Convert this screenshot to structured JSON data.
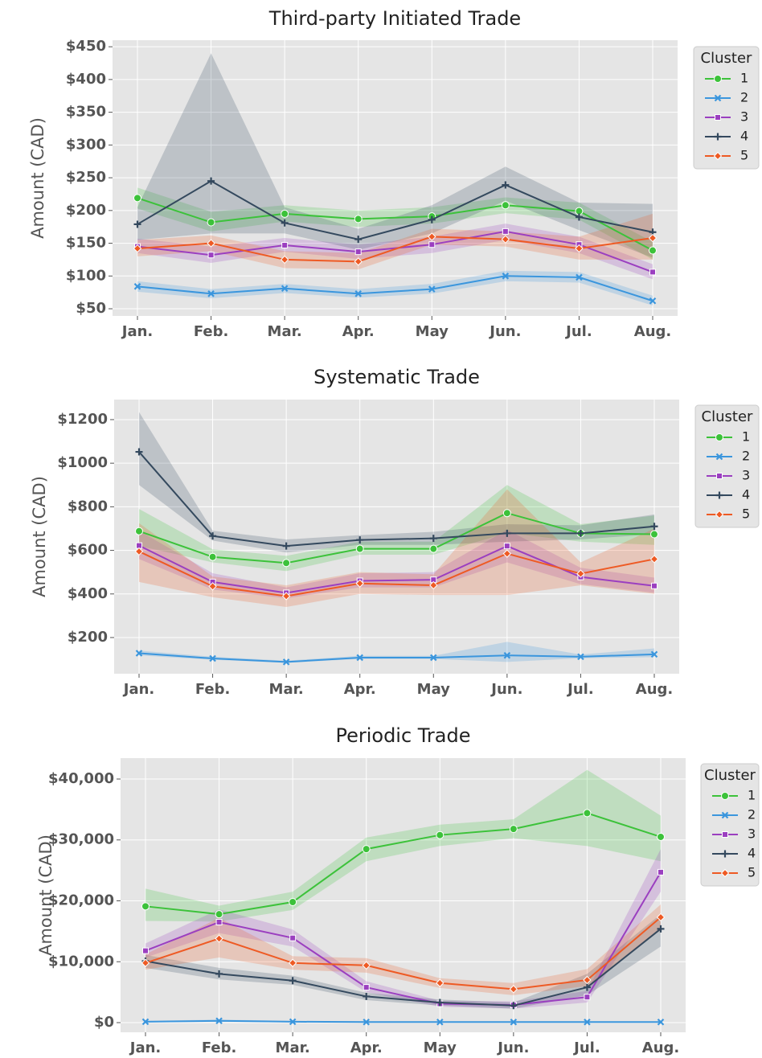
{
  "chart_data": [
    {
      "type": "line",
      "title": "Third-party Initiated Trade",
      "y_label": "Amount (CAD)",
      "legend_title": "Cluster",
      "legend_position": "outside right",
      "grid": true,
      "categories": [
        "Jan.",
        "Feb.",
        "Mar.",
        "Apr.",
        "May",
        "Jun.",
        "Jul.",
        "Aug."
      ],
      "ylim": [
        39,
        460
      ],
      "yticks": [
        {
          "value": 50,
          "label": "$50"
        },
        {
          "value": 100,
          "label": "$100"
        },
        {
          "value": 150,
          "label": "$150"
        },
        {
          "value": 200,
          "label": "$200"
        },
        {
          "value": 250,
          "label": "$250"
        },
        {
          "value": 300,
          "label": "$300"
        },
        {
          "value": 350,
          "label": "$350"
        },
        {
          "value": 400,
          "label": "$400"
        },
        {
          "value": 450,
          "label": "$450"
        }
      ],
      "series": [
        {
          "name": "1",
          "color": "#3cc23a",
          "marker": "circle",
          "values": [
            219,
            182,
            195,
            187,
            191,
            208,
            199,
            139
          ],
          "lower": [
            203,
            168,
            183,
            175,
            180,
            196,
            186,
            125
          ],
          "upper": [
            235,
            198,
            208,
            200,
            205,
            220,
            212,
            152
          ]
        },
        {
          "name": "2",
          "color": "#3b96dd",
          "marker": "x",
          "values": [
            84,
            73,
            81,
            73,
            80,
            100,
            98,
            62
          ],
          "lower": [
            76,
            66,
            74,
            67,
            73,
            92,
            90,
            55
          ],
          "upper": [
            92,
            80,
            88,
            80,
            88,
            108,
            106,
            70
          ]
        },
        {
          "name": "3",
          "color": "#9b3fc0",
          "marker": "square",
          "values": [
            145,
            132,
            147,
            137,
            148,
            168,
            148,
            106
          ],
          "lower": [
            135,
            120,
            137,
            126,
            135,
            155,
            135,
            95
          ],
          "upper": [
            157,
            145,
            158,
            148,
            160,
            180,
            160,
            118
          ]
        },
        {
          "name": "4",
          "color": "#34495e",
          "marker": "plus",
          "values": [
            179,
            245,
            181,
            156,
            186,
            239,
            190,
            167
          ],
          "lower": [
            155,
            165,
            165,
            140,
            165,
            215,
            170,
            128
          ],
          "upper": [
            205,
            440,
            205,
            172,
            208,
            267,
            212,
            210
          ]
        },
        {
          "name": "5",
          "color": "#ee5a24",
          "marker": "diamond",
          "values": [
            142,
            150,
            125,
            122,
            160,
            156,
            142,
            158
          ],
          "lower": [
            130,
            138,
            112,
            110,
            148,
            145,
            125,
            125
          ],
          "upper": [
            155,
            162,
            138,
            135,
            172,
            168,
            160,
            195
          ]
        }
      ]
    },
    {
      "type": "line",
      "title": "Systematic Trade",
      "y_label": "Amount (CAD)",
      "legend_title": "Cluster",
      "legend_position": "outside right",
      "grid": true,
      "categories": [
        "Jan.",
        "Feb.",
        "Mar.",
        "Apr.",
        "May",
        "Jun.",
        "Jul.",
        "Aug."
      ],
      "ylim": [
        34,
        1292
      ],
      "yticks": [
        {
          "value": 200,
          "label": "$200"
        },
        {
          "value": 400,
          "label": "$400"
        },
        {
          "value": 600,
          "label": "$600"
        },
        {
          "value": 800,
          "label": "$800"
        },
        {
          "value": 1000,
          "label": "$1000"
        },
        {
          "value": 1200,
          "label": "$1200"
        }
      ],
      "series": [
        {
          "name": "1",
          "color": "#3cc23a",
          "marker": "circle",
          "values": [
            688,
            570,
            542,
            607,
            607,
            771,
            678,
            674
          ],
          "lower": [
            620,
            545,
            505,
            580,
            580,
            680,
            640,
            625
          ],
          "upper": [
            790,
            605,
            575,
            640,
            640,
            900,
            720,
            760
          ]
        },
        {
          "name": "2",
          "color": "#3b96dd",
          "marker": "x",
          "values": [
            128,
            104,
            88,
            108,
            108,
            118,
            112,
            123
          ],
          "lower": [
            118,
            98,
            84,
            102,
            102,
            88,
            105,
            110
          ],
          "upper": [
            140,
            112,
            94,
            116,
            116,
            180,
            122,
            150
          ]
        },
        {
          "name": "3",
          "color": "#9b3fc0",
          "marker": "square",
          "values": [
            622,
            455,
            405,
            460,
            465,
            620,
            478,
            437
          ],
          "lower": [
            560,
            420,
            380,
            430,
            430,
            545,
            445,
            405
          ],
          "upper": [
            690,
            495,
            430,
            495,
            500,
            695,
            520,
            475
          ]
        },
        {
          "name": "4",
          "color": "#34495e",
          "marker": "plus",
          "values": [
            1052,
            666,
            620,
            648,
            655,
            678,
            678,
            710
          ],
          "lower": [
            900,
            645,
            590,
            625,
            625,
            640,
            650,
            675
          ],
          "upper": [
            1235,
            690,
            650,
            670,
            685,
            720,
            715,
            765
          ]
        },
        {
          "name": "5",
          "color": "#ee5a24",
          "marker": "diamond",
          "values": [
            595,
            435,
            390,
            448,
            440,
            585,
            493,
            560
          ],
          "lower": [
            455,
            385,
            340,
            400,
            395,
            395,
            440,
            400
          ],
          "upper": [
            725,
            480,
            440,
            500,
            490,
            880,
            545,
            700
          ]
        }
      ]
    },
    {
      "type": "line",
      "title": "Periodic Trade",
      "y_label": "Amount (CAD)",
      "legend_title": "Cluster",
      "legend_position": "outside right",
      "grid": true,
      "categories": [
        "Jan.",
        "Feb.",
        "Mar.",
        "Apr.",
        "May",
        "Jun.",
        "Jul.",
        "Aug."
      ],
      "ylim": [
        -1584,
        43432
      ],
      "yticks": [
        {
          "value": 0,
          "label": "$0"
        },
        {
          "value": 10000,
          "label": "$10,000"
        },
        {
          "value": 20000,
          "label": "$20,000"
        },
        {
          "value": 30000,
          "label": "$30,000"
        },
        {
          "value": 40000,
          "label": "$40,000"
        }
      ],
      "series": [
        {
          "name": "1",
          "color": "#3cc23a",
          "marker": "circle",
          "values": [
            19100,
            17800,
            19800,
            28500,
            30800,
            31800,
            34400,
            30500
          ],
          "lower": [
            16700,
            16600,
            18500,
            26500,
            29000,
            30300,
            29000,
            26500
          ],
          "upper": [
            22000,
            19200,
            21500,
            30400,
            32500,
            33400,
            41500,
            34000
          ]
        },
        {
          "name": "2",
          "color": "#3b96dd",
          "marker": "x",
          "values": [
            150,
            300,
            150,
            100,
            100,
            100,
            100,
            100
          ],
          "lower": [
            50,
            150,
            50,
            30,
            30,
            30,
            30,
            30
          ],
          "upper": [
            300,
            500,
            300,
            200,
            200,
            200,
            200,
            200
          ]
        },
        {
          "name": "3",
          "color": "#9b3fc0",
          "marker": "square",
          "values": [
            11800,
            16500,
            13900,
            5800,
            3100,
            2900,
            4200,
            24700
          ],
          "lower": [
            10700,
            14700,
            12500,
            5000,
            2600,
            2300,
            3300,
            21500
          ],
          "upper": [
            13000,
            18600,
            15300,
            6800,
            3600,
            3500,
            5200,
            28500
          ]
        },
        {
          "name": "4",
          "color": "#34495e",
          "marker": "plus",
          "values": [
            10100,
            8000,
            6900,
            4300,
            3300,
            2800,
            5800,
            15400
          ],
          "lower": [
            9000,
            7100,
            6200,
            3700,
            2800,
            2300,
            4500,
            12500
          ],
          "upper": [
            11100,
            9000,
            7700,
            4900,
            3800,
            3300,
            8000,
            17800
          ]
        },
        {
          "name": "5",
          "color": "#ee5a24",
          "marker": "diamond",
          "values": [
            9800,
            13800,
            9800,
            9400,
            6500,
            5500,
            7000,
            17300
          ],
          "lower": [
            8700,
            10700,
            8700,
            8200,
            5700,
            4500,
            6000,
            15200
          ],
          "upper": [
            11200,
            17200,
            10900,
            10600,
            7300,
            6500,
            8800,
            19400
          ]
        }
      ]
    }
  ]
}
